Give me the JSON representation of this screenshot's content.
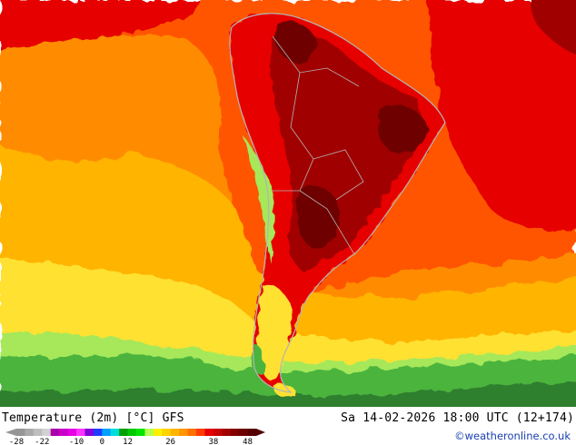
{
  "header": {
    "parameter_label": "Temperature (2m) [°C] GFS",
    "valid_time": "Sa 14-02-2026 18:00 UTC (12+174)"
  },
  "credit": "©weatheronline.co.uk",
  "legend": {
    "tick_labels": [
      "-28",
      "-22",
      "-10",
      "0",
      "12",
      "26",
      "38",
      "48"
    ],
    "colors": [
      "#969696",
      "#aaaaaa",
      "#bebebe",
      "#d2d2d2",
      "#aa00aa",
      "#c800c8",
      "#e600e6",
      "#ff32ff",
      "#8200dc",
      "#1e3cff",
      "#00a0ff",
      "#00dcdc",
      "#00a000",
      "#00c800",
      "#00e600",
      "#b4ff50",
      "#fff000",
      "#ffd200",
      "#ffb400",
      "#ff9600",
      "#ff6e00",
      "#ff3c00",
      "#e60000",
      "#c80000",
      "#a00000",
      "#820000",
      "#6e0000",
      "#550000"
    ]
  },
  "palette": {
    "ocean_green_dark": "#2e7f2e",
    "ocean_green": "#4bb43c",
    "ocean_light_green": "#a6e85a",
    "ocean_yellow": "#ffe132",
    "ocean_gold": "#ffb400",
    "ocean_orange": "#ff8c00",
    "ocean_red_orange": "#ff5500",
    "land_red": "#e60000",
    "land_dark_red": "#a00000",
    "land_darkest": "#6e0000",
    "coast_outline": "#b4b4b4"
  }
}
